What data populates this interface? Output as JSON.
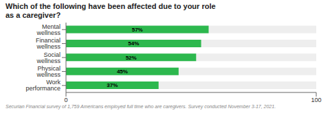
{
  "chart_data": {
    "type": "bar",
    "orientation": "horizontal",
    "title": "Which of the following have been affected due to your role\nas a caregiver?",
    "categories": [
      "Mental wellness",
      "Financial wellness",
      "Social wellness",
      "Physical wellness",
      "Work performance"
    ],
    "values": [
      57,
      54,
      52,
      45,
      37
    ],
    "value_labels": [
      "57%",
      "54%",
      "52%",
      "45%",
      "37%"
    ],
    "data_labels": true,
    "color": "#2db84e",
    "xlim": [
      0,
      100
    ],
    "xticks": [
      0,
      100
    ],
    "grid": false,
    "annotations": [
      "Securian Financial survey of 1,759 Americans employed full time who are caregivers. Survey conducted November 3-17, 2021."
    ]
  }
}
